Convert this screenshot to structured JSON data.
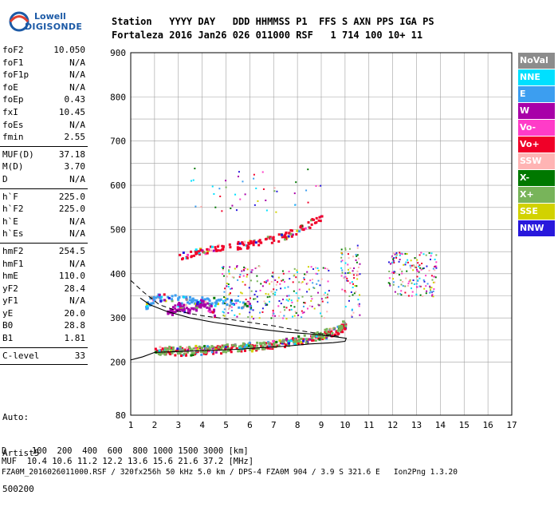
{
  "logo": {
    "line1": "Lowell",
    "line2": "DIGISONDE"
  },
  "header": {
    "line1": "Station   YYYY DAY   DDD HHMMSS P1  FFS S AXN PPS IGA PS",
    "line2": "Fortaleza 2016 Jan26 026 011000 RSF   1 714 100 10+ 11"
  },
  "params": [
    {
      "k": "foF2",
      "v": "10.050"
    },
    {
      "k": "foF1",
      "v": "N/A"
    },
    {
      "k": "foF1p",
      "v": "N/A"
    },
    {
      "k": "foE",
      "v": "N/A"
    },
    {
      "k": "foEp",
      "v": "0.43"
    },
    {
      "k": "fxI",
      "v": "10.45"
    },
    {
      "k": "foEs",
      "v": "N/A"
    },
    {
      "k": "fmin",
      "v": "2.55"
    },
    {
      "k": "MUF(D)",
      "v": "37.18"
    },
    {
      "k": "M(D)",
      "v": "3.70"
    },
    {
      "k": "D",
      "v": "N/A"
    },
    {
      "k": "h`F",
      "v": "225.0"
    },
    {
      "k": "h`F2",
      "v": "225.0"
    },
    {
      "k": "h`E",
      "v": "N/A"
    },
    {
      "k": "h`Es",
      "v": "N/A"
    },
    {
      "k": "hmF2",
      "v": "254.5"
    },
    {
      "k": "hmF1",
      "v": "N/A"
    },
    {
      "k": "hmE",
      "v": "110.0"
    },
    {
      "k": "yF2",
      "v": "28.4"
    },
    {
      "k": "yF1",
      "v": "N/A"
    },
    {
      "k": "yE",
      "v": "20.0"
    },
    {
      "k": "B0",
      "v": "28.8"
    },
    {
      "k": "B1",
      "v": "1.81"
    },
    {
      "k": "C-level",
      "v": "33"
    }
  ],
  "auto": {
    "line1": "Auto:",
    "line2": "Artist5",
    "line3": "500200"
  },
  "footer": {
    "line1": "D     100  200  400  600  800 1000 1500 3000 [km]",
    "line2": "MUF  10.4 10.6 11.2 12.2 13.6 15.6 21.6 37.2 [MHz]",
    "line3": "FZA0M_2016026011000.RSF / 320fx256h 50 kHz 5.0 km / DPS-4 FZA0M 904 / 3.9 S 321.6 E   Ion2Png 1.3.20"
  },
  "legend": [
    {
      "label": "NoVal",
      "color": "#8c8c8c"
    },
    {
      "label": "NNE",
      "color": "#00e0ff"
    },
    {
      "label": "E",
      "color": "#3c9ef0"
    },
    {
      "label": "W",
      "color": "#a800a8"
    },
    {
      "label": "Vo-",
      "color": "#ff3cc8"
    },
    {
      "label": "Vo+",
      "color": "#f00028"
    },
    {
      "label": "SSW",
      "color": "#ffb4b4"
    },
    {
      "label": "X-",
      "color": "#007800"
    },
    {
      "label": "X+",
      "color": "#78b45a"
    },
    {
      "label": "SSE",
      "color": "#d2d200"
    },
    {
      "label": "NNW",
      "color": "#2818dc"
    }
  ],
  "chart_data": {
    "type": "scatter",
    "x_label": "",
    "y_label": "",
    "xlim": [
      1,
      17
    ],
    "ylim": [
      80,
      900
    ],
    "x_ticks": [
      1,
      2,
      3,
      4,
      5,
      6,
      7,
      8,
      9,
      10,
      11,
      12,
      13,
      14,
      15,
      16,
      17
    ],
    "y_ticks": [
      80,
      200,
      300,
      400,
      500,
      600,
      700,
      800,
      900
    ],
    "grid": true,
    "profile_curve": [
      [
        1.4,
        345
      ],
      [
        1.8,
        330
      ],
      [
        2.5,
        315
      ],
      [
        3.5,
        300
      ],
      [
        4.5,
        290
      ],
      [
        5.5,
        282
      ],
      [
        6.5,
        274
      ],
      [
        7.5,
        268
      ],
      [
        8.5,
        264
      ],
      [
        9.5,
        258
      ],
      [
        10.05,
        254
      ],
      [
        10.0,
        247
      ],
      [
        9.5,
        244
      ],
      [
        8.5,
        241
      ],
      [
        7.5,
        236
      ],
      [
        6.5,
        233
      ],
      [
        5.5,
        229
      ],
      [
        4.5,
        227
      ],
      [
        3.5,
        225
      ],
      [
        2.5,
        223
      ],
      [
        2.0,
        222
      ],
      [
        1.5,
        212
      ],
      [
        1.0,
        205
      ]
    ],
    "dashed_curve": [
      [
        1.0,
        385
      ],
      [
        1.5,
        360
      ],
      [
        2.2,
        330
      ],
      [
        3.0,
        315
      ],
      [
        4.0,
        305
      ],
      [
        5.0,
        298
      ],
      [
        6.0,
        290
      ],
      [
        7.0,
        282
      ],
      [
        8.0,
        272
      ],
      [
        9.0,
        264
      ],
      [
        9.8,
        258
      ]
    ],
    "trace_series": [
      {
        "name": "Vo+",
        "color": "#f00028",
        "points": [
          [
            2,
            225
          ],
          [
            3,
            226
          ],
          [
            4,
            228
          ],
          [
            5,
            232
          ],
          [
            6,
            236
          ],
          [
            7,
            242
          ],
          [
            8,
            250
          ],
          [
            9,
            262
          ],
          [
            9.6,
            272
          ],
          [
            10,
            285
          ]
        ]
      },
      {
        "name": "X+",
        "color": "#78b45a",
        "points": [
          [
            2,
            228
          ],
          [
            3,
            230
          ],
          [
            4,
            231
          ],
          [
            5,
            234
          ],
          [
            6,
            238
          ],
          [
            7,
            244
          ],
          [
            8,
            252
          ],
          [
            9,
            264
          ],
          [
            10,
            290
          ]
        ]
      },
      {
        "name": "Vo+",
        "color": "#f00028",
        "points": [
          [
            3,
            440
          ],
          [
            4,
            452
          ],
          [
            5,
            462
          ],
          [
            6,
            470
          ],
          [
            7,
            480
          ],
          [
            8,
            500
          ],
          [
            9,
            530
          ]
        ]
      },
      {
        "name": "E",
        "color": "#3c9ef0",
        "points": [
          [
            1.6,
            330
          ],
          [
            2,
            350
          ],
          [
            3,
            345
          ],
          [
            4,
            340
          ],
          [
            5,
            338
          ],
          [
            6,
            330
          ]
        ]
      },
      {
        "name": "W",
        "color": "#a800a8",
        "points": [
          [
            2.5,
            310
          ],
          [
            3,
            330
          ],
          [
            3.5,
            318
          ],
          [
            4,
            340
          ],
          [
            4.5,
            312
          ]
        ]
      }
    ]
  }
}
